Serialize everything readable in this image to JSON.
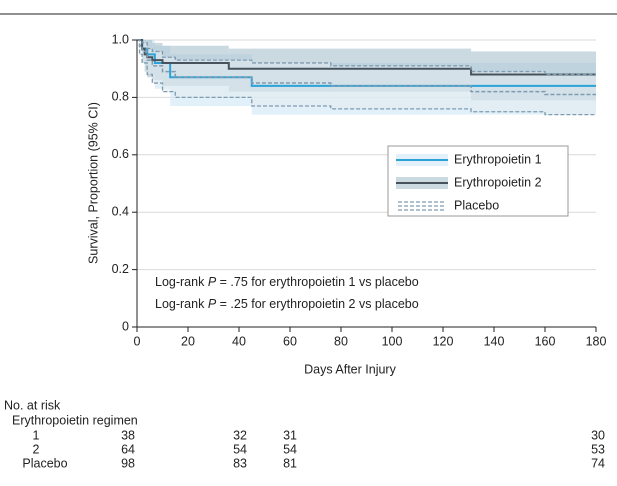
{
  "chart_data": {
    "type": "step",
    "x_label": "Days After Injury",
    "y_label": "Survival, Proportion (95% CI)",
    "xlim": [
      0,
      180
    ],
    "xticks": [
      0,
      20,
      40,
      60,
      80,
      100,
      120,
      140,
      160,
      180
    ],
    "ylim": [
      0,
      1
    ],
    "yticks": [
      0,
      0.2,
      0.4,
      0.6,
      0.8,
      {
        "value": 1,
        "label": "1.0"
      }
    ],
    "grid": true,
    "legend": "right",
    "series": [
      {
        "name": "Erythropoietin 1",
        "color": "#2ba3d8",
        "band_color": "#cfe7f5",
        "x": [
          0,
          2,
          4,
          7,
          13,
          45,
          180
        ],
        "values": [
          1,
          0.97,
          0.95,
          0.92,
          0.87,
          0.84,
          0.84
        ],
        "ci_lower": [
          1,
          0.92,
          0.88,
          0.83,
          0.77,
          0.74,
          0.74
        ],
        "ci_upper": [
          1,
          1,
          1,
          0.98,
          0.95,
          0.92,
          0.92
        ]
      },
      {
        "name": "Erythropoietin 2",
        "color": "#46525c",
        "band_color": "#a9bfcd",
        "x": [
          0,
          2,
          3,
          4,
          6,
          10,
          36,
          131,
          180
        ],
        "values": [
          1,
          0.97,
          0.95,
          0.94,
          0.93,
          0.92,
          0.9,
          0.88,
          0.88
        ],
        "ci_lower": [
          1,
          0.92,
          0.89,
          0.87,
          0.86,
          0.84,
          0.82,
          0.79,
          0.79
        ],
        "ci_upper": [
          1,
          1,
          1,
          1,
          0.99,
          0.98,
          0.97,
          0.96,
          0.96
        ]
      },
      {
        "name": "Placebo",
        "color": "#7f9bb0",
        "band_color": "#e3ebf0",
        "dashed": true,
        "x": [
          0,
          1,
          2,
          4,
          6,
          10,
          15,
          45,
          76,
          131,
          160,
          180
        ],
        "values": [
          1,
          0.98,
          0.96,
          0.93,
          0.91,
          0.89,
          0.87,
          0.85,
          0.84,
          0.82,
          0.81,
          0.81
        ],
        "ci_lower": [
          1,
          0.95,
          0.92,
          0.88,
          0.85,
          0.82,
          0.8,
          0.77,
          0.76,
          0.75,
          0.74,
          0.74
        ],
        "ci_upper": [
          1,
          1,
          0.99,
          0.97,
          0.96,
          0.94,
          0.93,
          0.92,
          0.91,
          0.89,
          0.88,
          0.88
        ]
      }
    ],
    "annotations": [
      [
        "Log-rank ",
        "P",
        " = .75 for erythropoietin 1 vs placebo"
      ],
      [
        "Log-rank ",
        "P",
        " = .25 for erythropoietin 2 vs placebo"
      ]
    ],
    "risk_table": {
      "title": "No. at risk",
      "group": "Erythropoietin regimen",
      "rows": [
        {
          "label": "1",
          "counts": [
            38,
            32,
            31,
            30
          ]
        },
        {
          "label": "2",
          "counts": [
            64,
            54,
            54,
            53
          ]
        },
        {
          "label": "Placebo",
          "counts": [
            98,
            83,
            81,
            74
          ]
        }
      ]
    }
  }
}
